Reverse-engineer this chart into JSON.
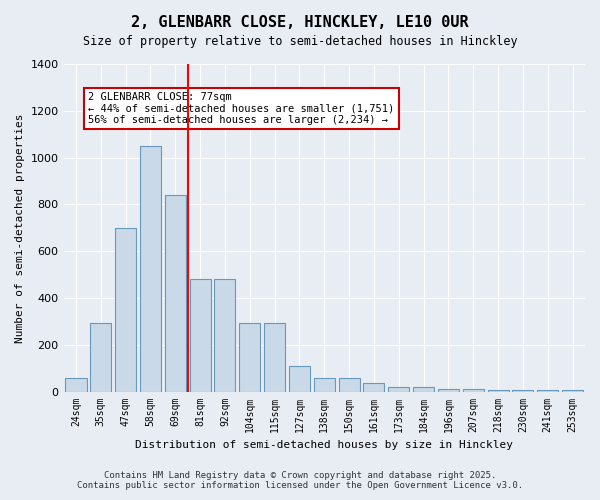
{
  "title": "2, GLENBARR CLOSE, HINCKLEY, LE10 0UR",
  "subtitle": "Size of property relative to semi-detached houses in Hinckley",
  "xlabel": "Distribution of semi-detached houses by size in Hinckley",
  "ylabel": "Number of semi-detached properties",
  "categories": [
    "24sqm",
    "35sqm",
    "47sqm",
    "58sqm",
    "69sqm",
    "81sqm",
    "92sqm",
    "104sqm",
    "115sqm",
    "127sqm",
    "138sqm",
    "150sqm",
    "161sqm",
    "173sqm",
    "184sqm",
    "196sqm",
    "207sqm",
    "218sqm",
    "230sqm",
    "241sqm",
    "253sqm"
  ],
  "values": [
    60,
    295,
    700,
    1050,
    840,
    480,
    480,
    295,
    295,
    110,
    60,
    60,
    35,
    20,
    20,
    10,
    10,
    5,
    5,
    5,
    5
  ],
  "bar_color": "#c9d9e8",
  "bar_edge_color": "#6699bb",
  "background_color": "#e8edf4",
  "grid_color": "#ffffff",
  "red_line_index": 4.5,
  "annotation_text": "2 GLENBARR CLOSE: 77sqm\n← 44% of semi-detached houses are smaller (1,751)\n56% of semi-detached houses are larger (2,234) →",
  "annotation_box_color": "#ffffff",
  "annotation_box_edge": "#cc0000",
  "footer_line1": "Contains HM Land Registry data © Crown copyright and database right 2025.",
  "footer_line2": "Contains public sector information licensed under the Open Government Licence v3.0.",
  "ylim": [
    0,
    1400
  ],
  "yticks": [
    0,
    200,
    400,
    600,
    800,
    1000,
    1200,
    1400
  ]
}
